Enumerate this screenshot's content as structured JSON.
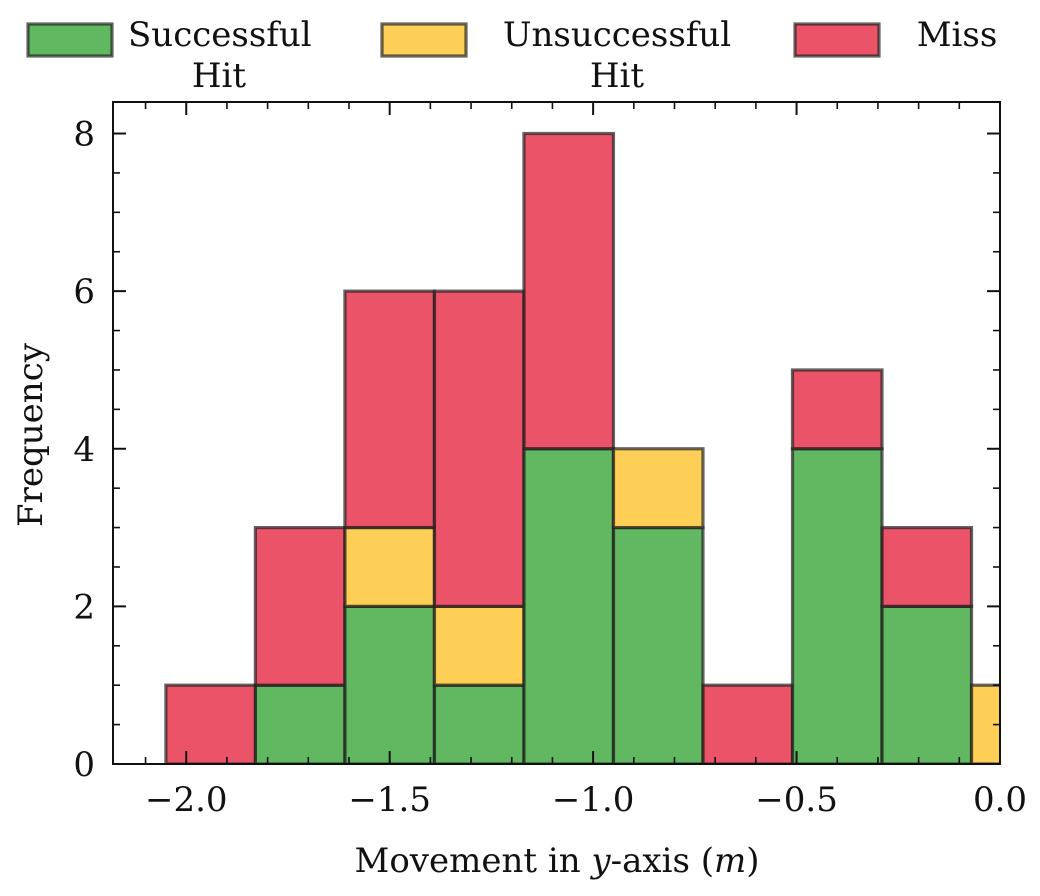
{
  "chart_data": {
    "type": "bar",
    "stacked": true,
    "bin_edges": [
      -2.05,
      -1.83,
      -1.61,
      -1.39,
      -1.17,
      -0.95,
      -0.73,
      -0.51,
      -0.29,
      -0.07,
      0.15
    ],
    "series": [
      {
        "name": "Successful Hit",
        "label_lines": [
          "Successful",
          "Hit"
        ],
        "color": "#2ca02c",
        "values": [
          0,
          1,
          2,
          1,
          4,
          3,
          0,
          4,
          2,
          0
        ]
      },
      {
        "name": "Unsuccessful Hit",
        "label_lines": [
          "Unsuccessful",
          "Hit"
        ],
        "color": "#fcbf1e",
        "values": [
          0,
          0,
          1,
          1,
          0,
          1,
          0,
          0,
          0,
          1
        ]
      },
      {
        "name": "Miss",
        "label_lines": [
          "Miss"
        ],
        "color": "#e41a35",
        "values": [
          1,
          2,
          3,
          4,
          4,
          0,
          1,
          1,
          1,
          0
        ]
      }
    ],
    "xlabel": "Movement in y-axis (m)",
    "xlabel_parts": {
      "prefix": "Movement in ",
      "var": "y",
      "middle": "-axis (",
      "unit": "m",
      "suffix": ")"
    },
    "ylabel": "Frequency",
    "xlim": [
      -2.18,
      0.0
    ],
    "ylim": [
      0,
      8.4
    ],
    "xticks": [
      -2.0,
      -1.5,
      -1.0,
      -0.5,
      0.0
    ],
    "xtick_labels": [
      "−2.0",
      "−1.5",
      "−1.0",
      "−0.5",
      "0.0"
    ],
    "yticks": [
      0,
      2,
      4,
      6,
      8
    ],
    "ytick_labels": [
      "0",
      "2",
      "4",
      "6",
      "8"
    ],
    "legend_position": "top",
    "grid": false
  }
}
